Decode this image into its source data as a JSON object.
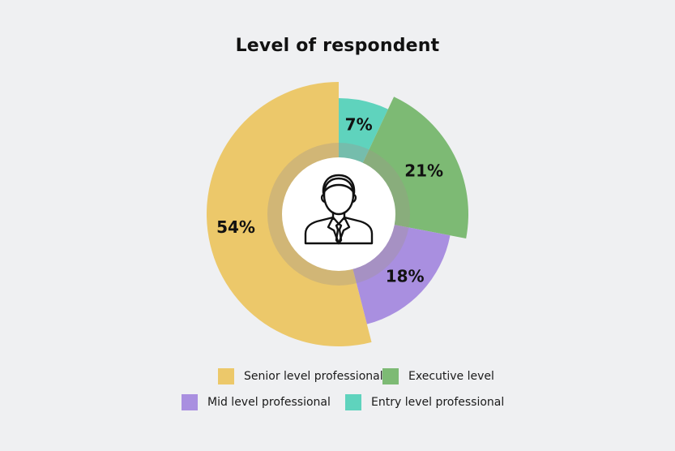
{
  "chart_data": {
    "type": "pie",
    "title": "Level of respondent",
    "categories": [
      "Senior level professional",
      "Executive level",
      "Mid level professional",
      "Entry level professional"
    ],
    "values": [
      54,
      21,
      18,
      7
    ],
    "value_labels": [
      "54%",
      "21%",
      "18%",
      "7%"
    ],
    "colors": {
      "Senior level professional": "#ecc86a",
      "Executive level": "#7dba74",
      "Mid level professional": "#a98fe0",
      "Entry level professional": "#5fd3bd"
    },
    "legend_position": "bottom",
    "center_icon": "businessman-icon"
  }
}
